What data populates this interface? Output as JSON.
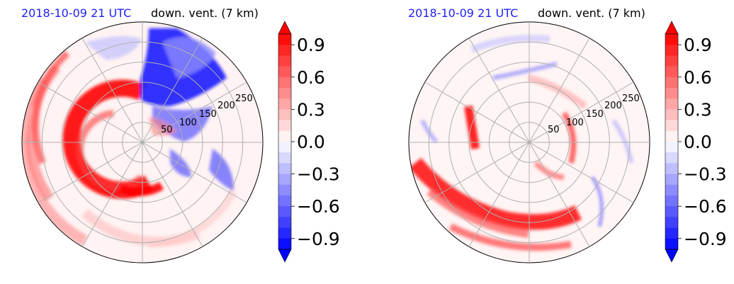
{
  "chart_data": [
    {
      "type": "heatmap",
      "projection": "polar",
      "title_left": "2018-10-09 21 UTC",
      "title_right": "down. vent. (7 km)",
      "radial_ticks": [
        "50",
        "100",
        "150",
        "200",
        "250"
      ],
      "radial_values": [
        50,
        100,
        150,
        200,
        250
      ],
      "rmax": 300,
      "colorbar": {
        "ticks": [
          "0.9",
          "0.6",
          "0.3",
          "0.0",
          "−0.3",
          "−0.6",
          "−0.9"
        ],
        "tick_values": [
          0.9,
          0.6,
          0.3,
          0.0,
          -0.3,
          -0.6,
          -0.9
        ],
        "vmin": -1.0,
        "vmax": 1.0,
        "cmap": "bwr",
        "extend": "both"
      },
      "colors": {
        "negative": "#0000ff",
        "neutral": "#ffffff",
        "positive": "#ff0000",
        "title_date": "#1f1fff"
      }
    },
    {
      "type": "heatmap",
      "projection": "polar",
      "title_left": "2018-10-09 21 UTC",
      "title_right": "down. vent. (7 km)",
      "radial_ticks": [
        "50",
        "100",
        "150",
        "200",
        "250"
      ],
      "radial_values": [
        50,
        100,
        150,
        200,
        250
      ],
      "rmax": 300,
      "colorbar": {
        "ticks": [
          "0.9",
          "0.6",
          "0.3",
          "0.0",
          "−0.3",
          "−0.6",
          "−0.9"
        ],
        "tick_values": [
          0.9,
          0.6,
          0.3,
          0.0,
          -0.3,
          -0.6,
          -0.9
        ],
        "vmin": -1.0,
        "vmax": 1.0,
        "cmap": "bwr",
        "extend": "both"
      },
      "colors": {
        "negative": "#0000ff",
        "neutral": "#ffffff",
        "positive": "#ff0000",
        "title_date": "#1f1fff"
      }
    }
  ]
}
